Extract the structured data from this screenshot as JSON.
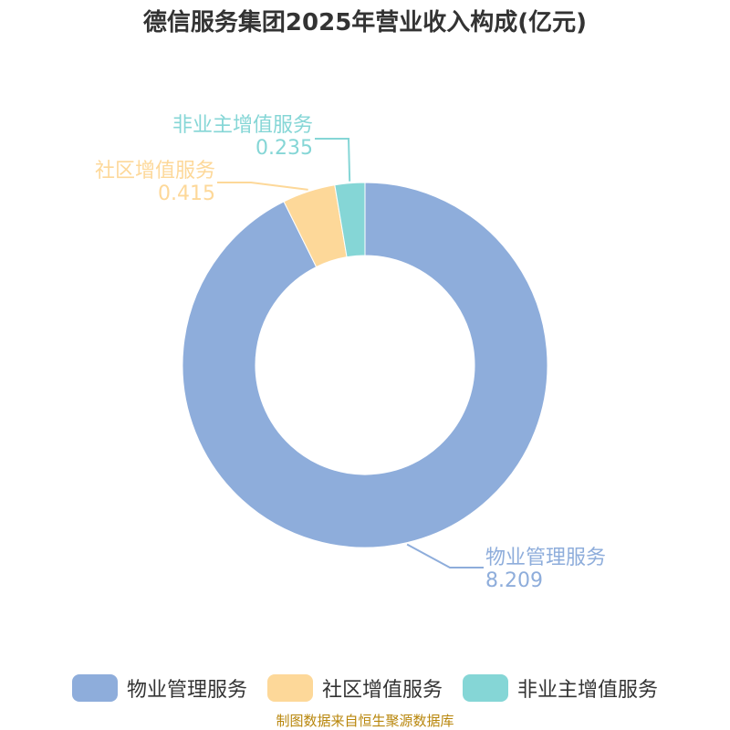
{
  "title": "德信服务集团2025年营业收入构成(亿元)",
  "source": "制图数据来自恒生聚源数据库",
  "chart_data": {
    "type": "pie",
    "variant": "donut",
    "title": "德信服务集团2025年营业收入构成(亿元)",
    "categories": [
      "物业管理服务",
      "社区增值服务",
      "非业主增值服务"
    ],
    "values": [
      8.209,
      0.415,
      0.235
    ],
    "value_labels": [
      "8.209",
      "0.415",
      "0.235"
    ],
    "colors": [
      "#8EADDB",
      "#FDD899",
      "#85D6D6"
    ],
    "legend_position": "bottom"
  }
}
